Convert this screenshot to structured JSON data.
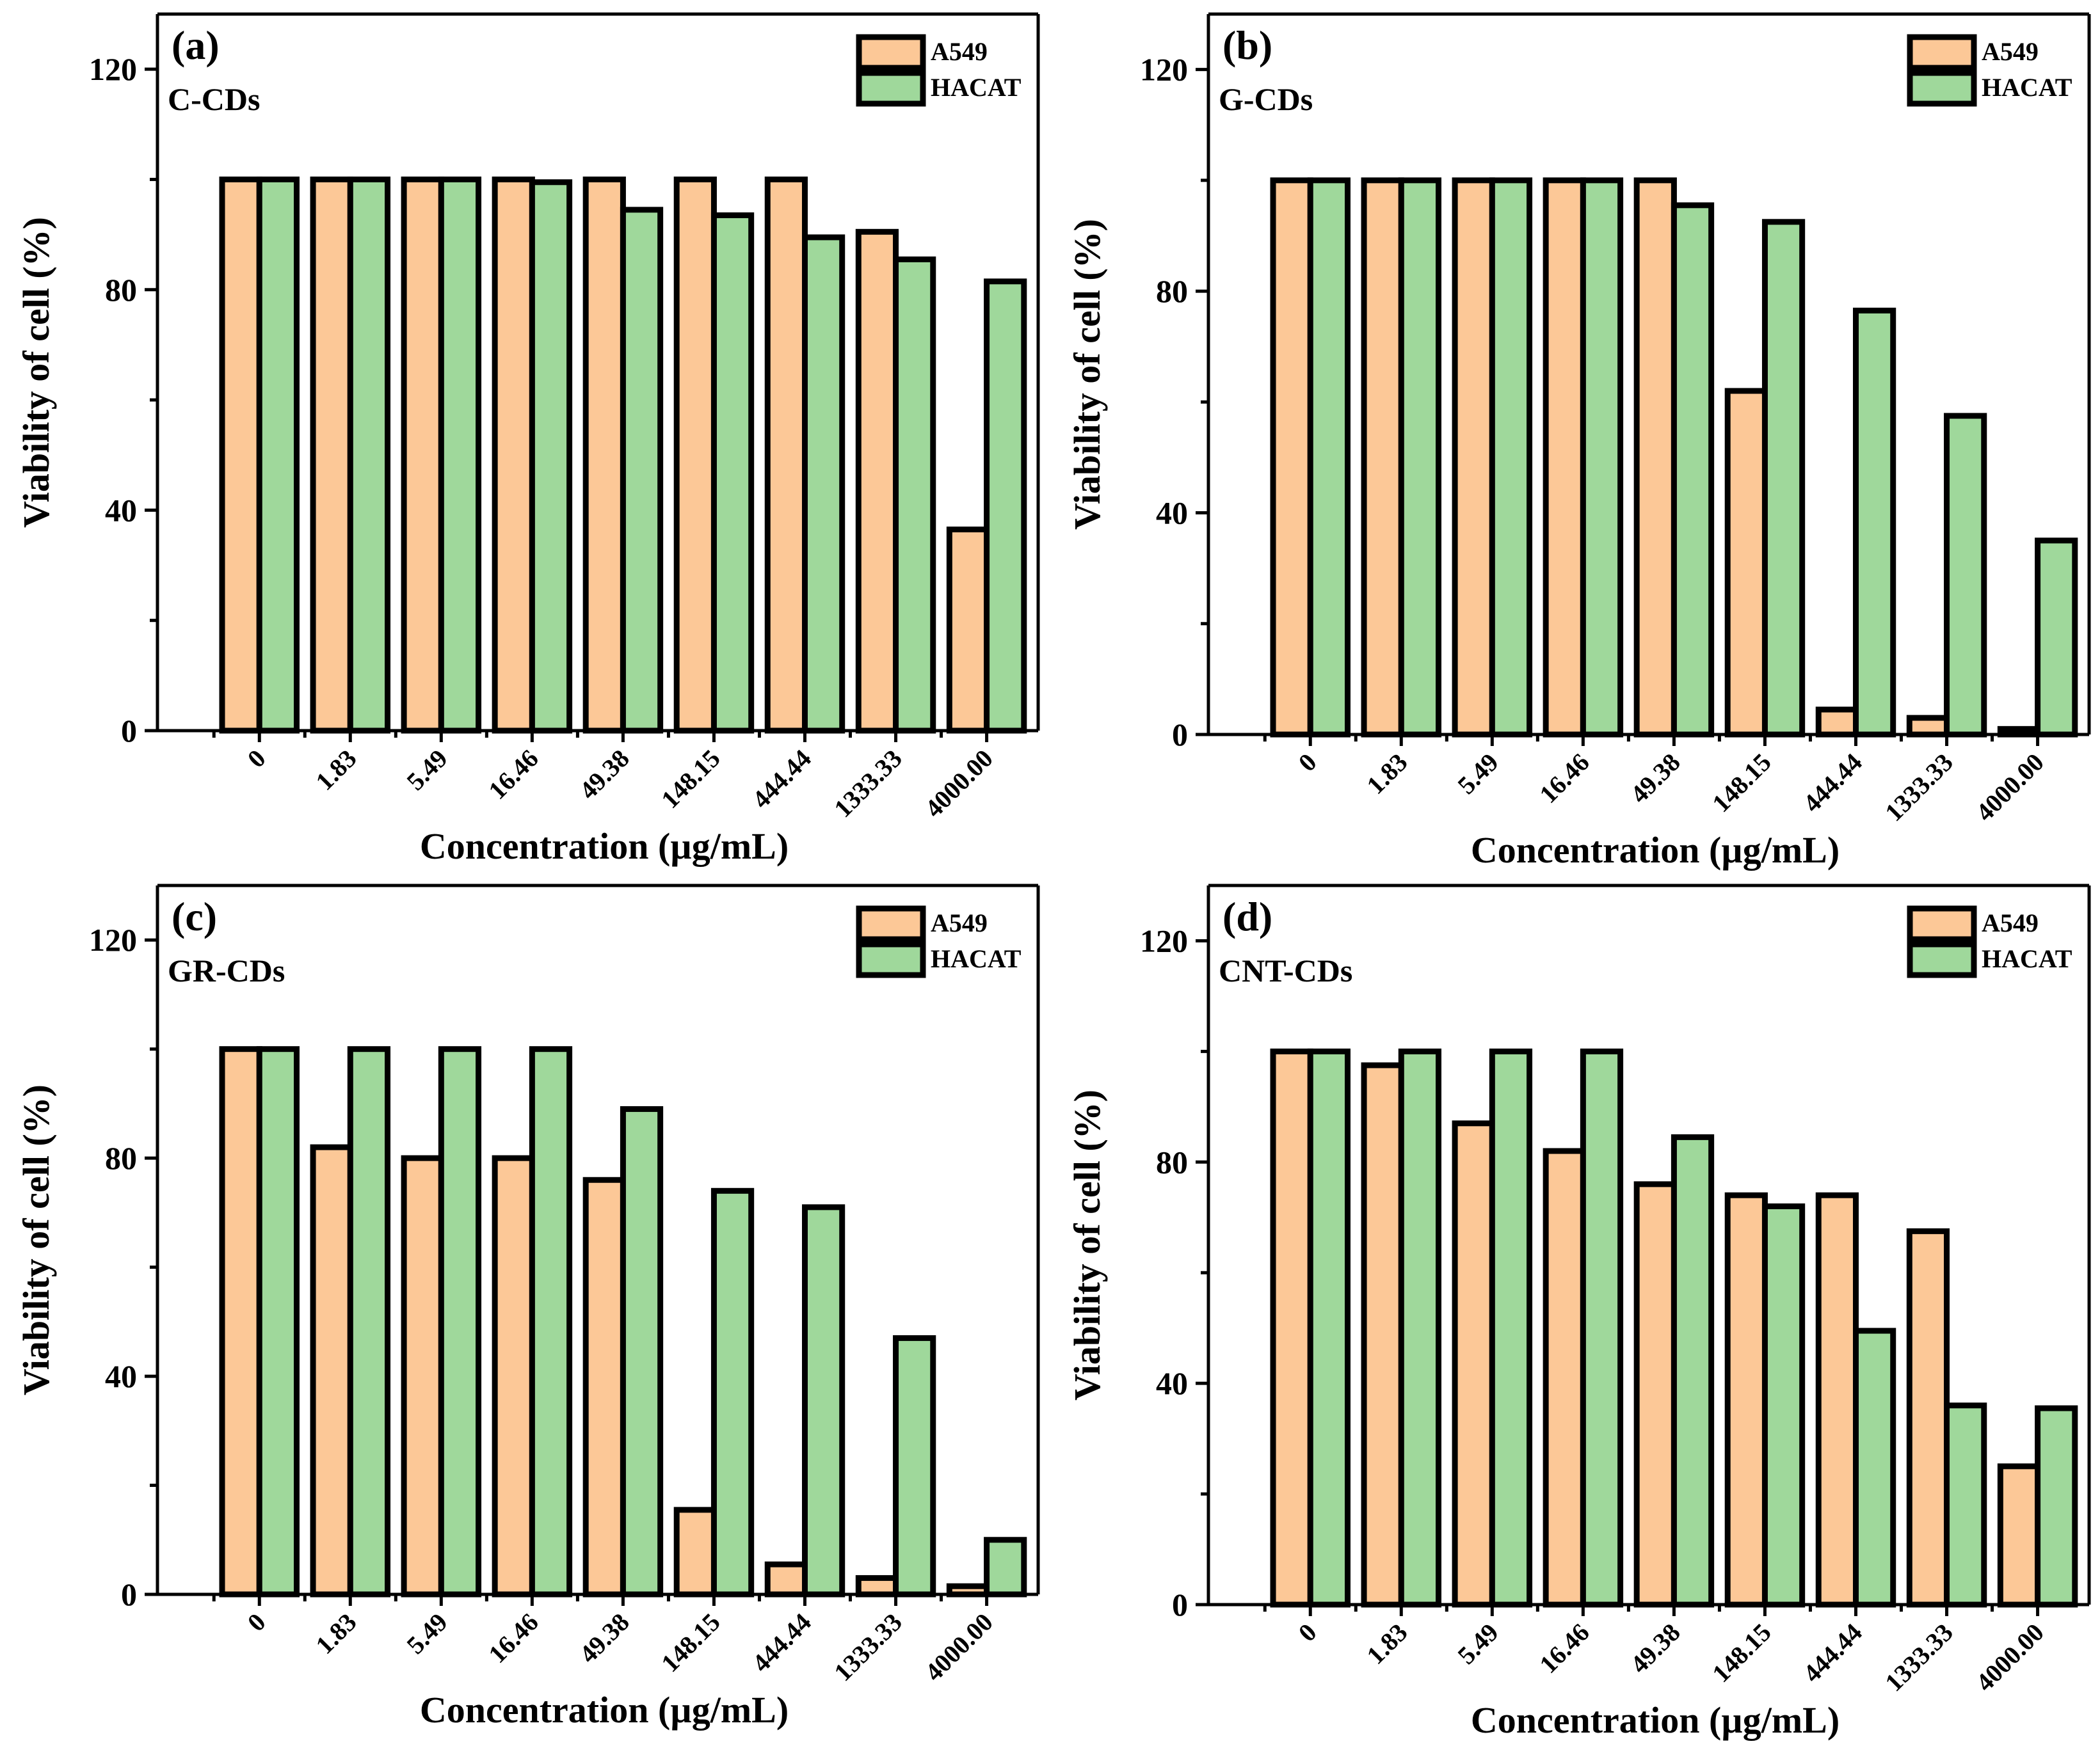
{
  "chart_data": [
    {
      "type": "bar",
      "panel_label": "(a)",
      "sample": "C-CDs",
      "xlabel": "Concentration (µg/mL)",
      "ylabel": "Viability of cell (%)",
      "ylim": [
        0,
        130
      ],
      "yticks": [
        "0",
        "40",
        "80",
        "120"
      ],
      "categories": [
        "0",
        "1.83",
        "5.49",
        "16.46",
        "49.38",
        "148.15",
        "444.44",
        "1333.33",
        "4000.00"
      ],
      "legend_position": "top-right",
      "series": [
        {
          "name": "A549",
          "color": "#FCC897",
          "values": [
            100,
            100,
            100,
            100,
            100,
            100,
            100,
            90.5,
            36.5
          ]
        },
        {
          "name": "HACAT",
          "color": "#9FD89B",
          "values": [
            100,
            100,
            100,
            99.5,
            94.5,
            93.5,
            89.5,
            85.5,
            81.5
          ]
        }
      ]
    },
    {
      "type": "bar",
      "panel_label": "(b)",
      "sample": "G-CDs",
      "xlabel": "Concentration (µg/mL)",
      "ylabel": "Viability of cell (%)",
      "ylim": [
        0,
        130
      ],
      "yticks": [
        "0",
        "40",
        "80",
        "120"
      ],
      "categories": [
        "0",
        "1.83",
        "5.49",
        "16.46",
        "49.38",
        "148.15",
        "444.44",
        "1333.33",
        "4000.00"
      ],
      "legend_position": "top-right",
      "series": [
        {
          "name": "A549",
          "color": "#FCC897",
          "values": [
            100,
            100,
            100,
            100,
            100,
            62,
            4.5,
            3,
            1
          ]
        },
        {
          "name": "HACAT",
          "color": "#9FD89B",
          "values": [
            100,
            100,
            100,
            100,
            95.5,
            92.5,
            76.5,
            57.5,
            35
          ]
        }
      ]
    },
    {
      "type": "bar",
      "panel_label": "(c)",
      "sample": "GR-CDs",
      "xlabel": "Concentration (µg/mL)",
      "ylabel": "Viability of cell (%)",
      "ylim": [
        0,
        130
      ],
      "yticks": [
        "0",
        "40",
        "80",
        "120"
      ],
      "categories": [
        "0",
        "1.83",
        "5.49",
        "16.46",
        "49.38",
        "148.15",
        "444.44",
        "1333.33",
        "4000.00"
      ],
      "legend_position": "top-right",
      "series": [
        {
          "name": "A549",
          "color": "#FCC897",
          "values": [
            100,
            82,
            80,
            80,
            76,
            15.5,
            5.5,
            3,
            1.5
          ]
        },
        {
          "name": "HACAT",
          "color": "#9FD89B",
          "values": [
            100,
            100,
            100,
            100,
            89,
            74,
            71,
            47,
            10
          ]
        }
      ]
    },
    {
      "type": "bar",
      "panel_label": "(d)",
      "sample": "CNT-CDs",
      "xlabel": "Concentration (µg/mL)",
      "ylabel": "Viability of cell (%)",
      "ylim": [
        0,
        130
      ],
      "yticks": [
        "0",
        "40",
        "80",
        "120"
      ],
      "categories": [
        "0",
        "1.83",
        "5.49",
        "16.46",
        "49.38",
        "148.15",
        "444.44",
        "1333.33",
        "4000.00"
      ],
      "legend_position": "top-right",
      "series": [
        {
          "name": "A549",
          "color": "#FCC897",
          "values": [
            100,
            97.5,
            87,
            82,
            76,
            74,
            74,
            67.5,
            25
          ]
        },
        {
          "name": "HACAT",
          "color": "#9FD89B",
          "values": [
            100,
            100,
            100,
            100,
            84.5,
            72,
            49.5,
            36,
            35.5
          ]
        }
      ]
    }
  ]
}
